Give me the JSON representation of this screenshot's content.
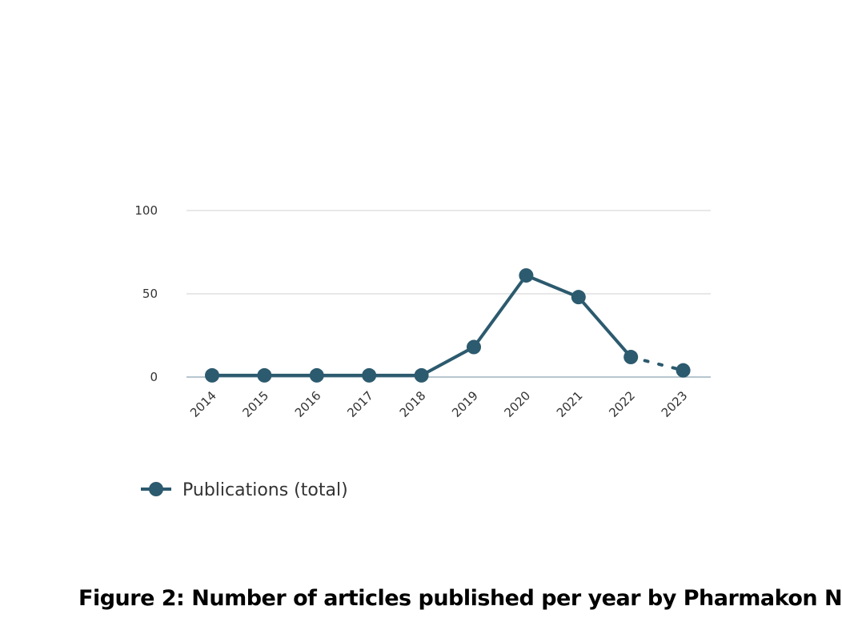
{
  "chart_data": {
    "type": "line",
    "x": [
      "2014",
      "2015",
      "2016",
      "2017",
      "2018",
      "2019",
      "2020",
      "2021",
      "2022",
      "2023"
    ],
    "series": [
      {
        "name": "Publications (total)",
        "values": [
          1,
          1,
          1,
          1,
          1,
          18,
          61,
          48,
          12,
          4
        ],
        "dashed_segments_from_index": 8
      }
    ],
    "yticks": [
      0,
      50,
      100
    ],
    "ylim": [
      0,
      100
    ],
    "grid": true,
    "legend": "bottom-left",
    "color": "#2c5a6e"
  },
  "caption": "Figure 2: Number of articles published per year by Pharmakon N"
}
